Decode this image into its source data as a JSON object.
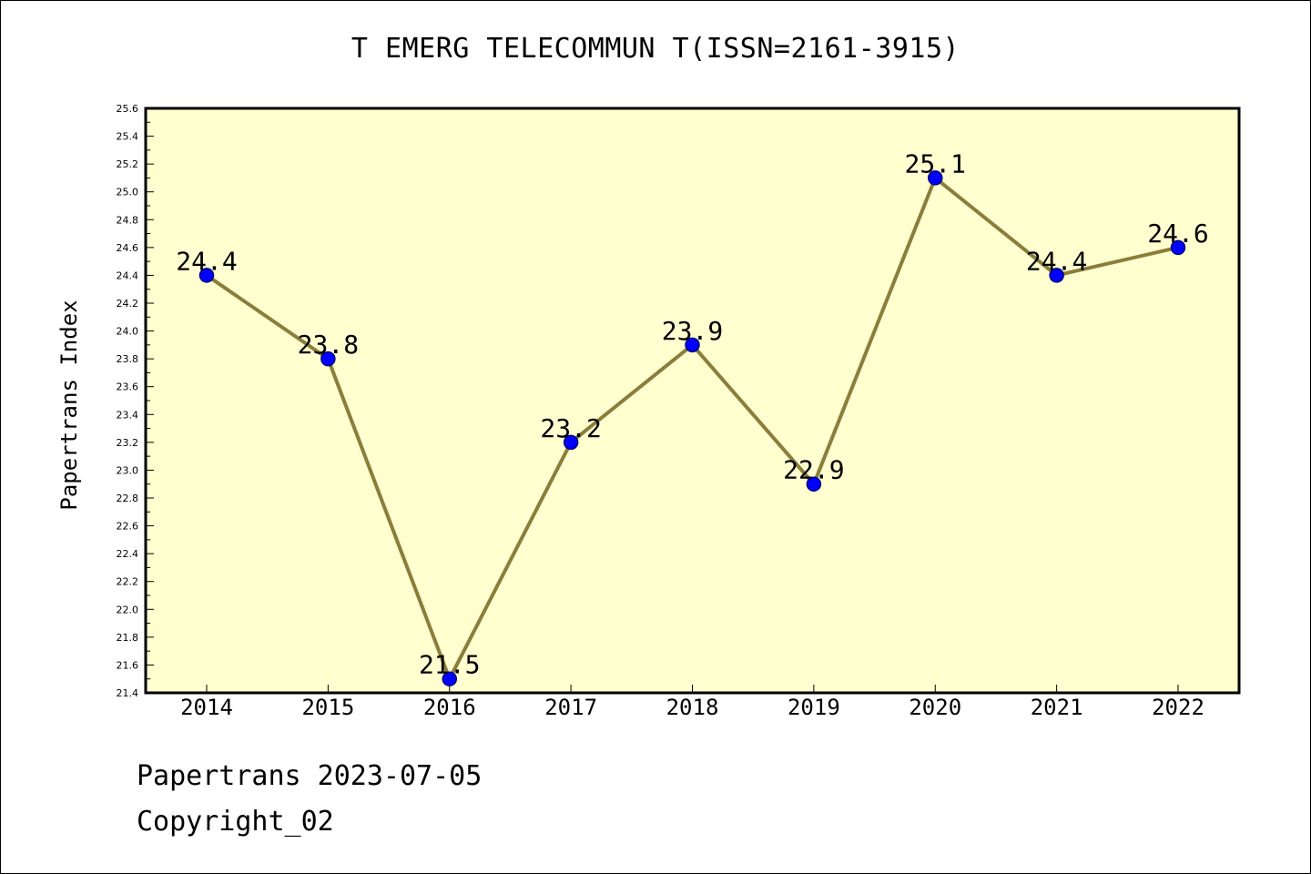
{
  "chart_data": {
    "type": "line",
    "title": "T EMERG TELECOMMUN T(ISSN=2161-3915)",
    "xlabel": "",
    "ylabel": "Papertrans Index",
    "categories": [
      "2014",
      "2015",
      "2016",
      "2017",
      "2018",
      "2019",
      "2020",
      "2021",
      "2022"
    ],
    "values": [
      24.4,
      23.8,
      21.5,
      23.2,
      23.9,
      22.9,
      25.1,
      24.4,
      24.6
    ],
    "value_labels": [
      "24.4",
      "23.8",
      "21.5",
      "23.2",
      "23.9",
      "22.9",
      "25.1",
      "24.4",
      "24.6"
    ],
    "ylim": [
      21.4,
      25.6
    ],
    "yticks": [
      "21.4",
      "21.6",
      "21.8",
      "22.0",
      "22.2",
      "22.4",
      "22.6",
      "22.8",
      "23.0",
      "23.2",
      "23.4",
      "23.6",
      "23.8",
      "24.0",
      "24.2",
      "24.4",
      "24.6",
      "24.8",
      "25.0",
      "25.2",
      "25.4",
      "25.6"
    ],
    "grid": false,
    "colors": {
      "plot_background": "#ffffd0",
      "line": "#8b7d3a",
      "marker": "#0000ff",
      "marker_edge": "#000080"
    }
  },
  "footer": {
    "line1": "Papertrans 2023-07-05",
    "line2": "Copyright_02"
  }
}
